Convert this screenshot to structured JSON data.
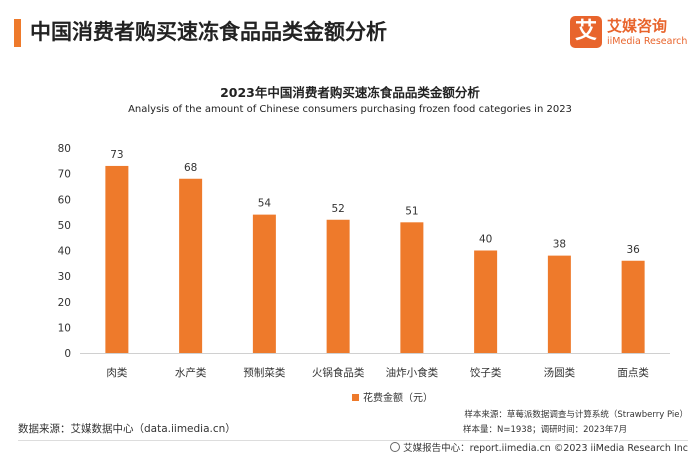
{
  "header": {
    "title": "中国消费者购买速冻食品品类金额分析",
    "logo_mark": "艾",
    "logo_cn": "艾媒咨询",
    "logo_en": "iiMedia Research"
  },
  "chart_data": {
    "type": "bar",
    "title": "2023年中国消费者购买速冻食品品类金额分析",
    "subtitle": "Analysis of the amount of Chinese consumers purchasing frozen food categories in 2023",
    "categories": [
      "肉类",
      "水产类",
      "预制菜类",
      "火锅食品类",
      "油炸小食类",
      "饺子类",
      "汤圆类",
      "面点类"
    ],
    "series": [
      {
        "name": "花费金额（元）",
        "values": [
          73,
          68,
          54,
          52,
          51,
          40,
          38,
          36
        ],
        "color": "#ee7a2b"
      }
    ],
    "ylim": [
      0,
      80
    ],
    "yticks": [
      0,
      10,
      20,
      30,
      40,
      50,
      60,
      70,
      80
    ],
    "grid": false,
    "legend": "bottom-center"
  },
  "notes": {
    "source": "数据来源：艾媒数据中心（data.iimedia.cn）",
    "sample_source": "样本来源：草莓派数据调查与计算系统（Strawberry Pie）",
    "sample_size": "样本量：N=1938；调研时间：2023年7月",
    "footer": "艾媒报告中心：report.iimedia.cn  ©2023  iiMedia Research  Inc"
  }
}
